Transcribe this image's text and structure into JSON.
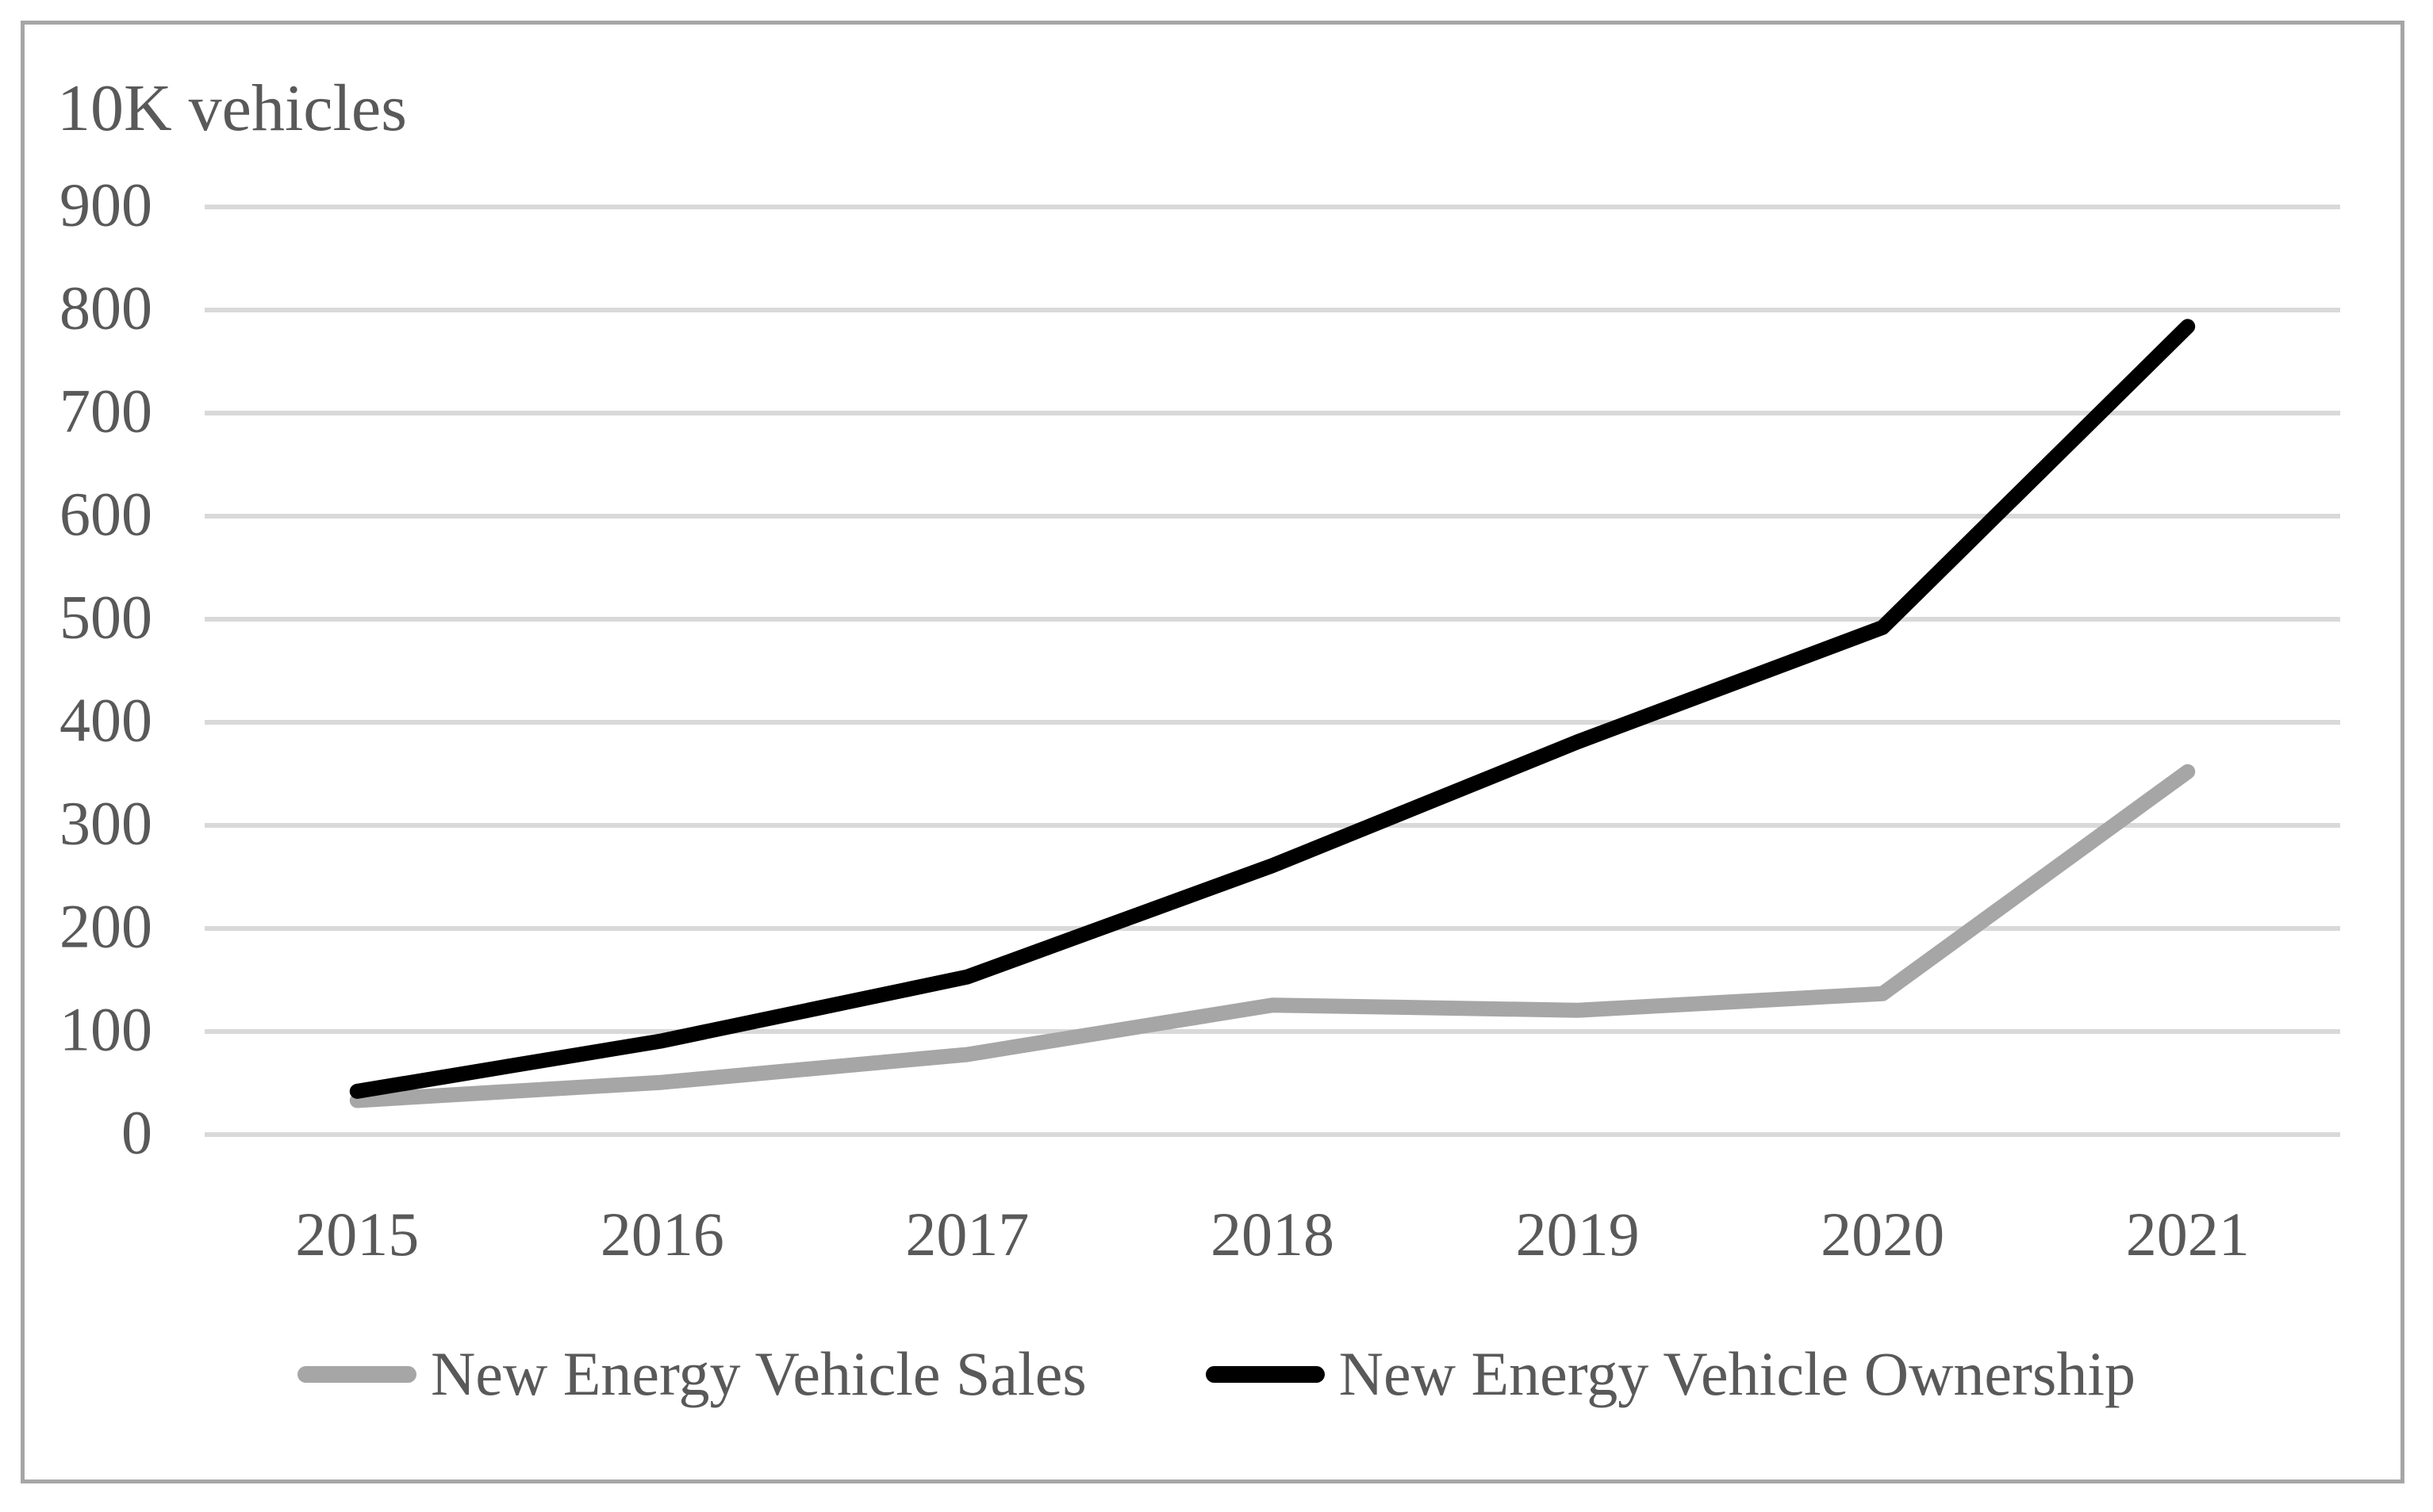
{
  "title": "10K vehicles",
  "chart_data": {
    "type": "line",
    "categories": [
      "2015",
      "2016",
      "2017",
      "2018",
      "2019",
      "2020",
      "2021"
    ],
    "series": [
      {
        "name": "New Energy Vehicle Sales",
        "color": "#a6a6a6",
        "values": [
          33.1,
          50.7,
          77.7,
          125.6,
          120.6,
          136.7,
          352.1
        ]
      },
      {
        "name": "New Energy Vehicle Ownership",
        "color": "#000000",
        "values": [
          42,
          91,
          153,
          261,
          381,
          492,
          784
        ]
      }
    ],
    "ylabel": "10K vehicles",
    "xlabel": "",
    "ylim": [
      0,
      900
    ],
    "yticks": [
      0,
      100,
      200,
      300,
      400,
      500,
      600,
      700,
      800,
      900
    ],
    "grid": true,
    "legend_position": "bottom"
  },
  "colors": {
    "text": "#595959",
    "gridline": "#d9d9d9",
    "figure_border": "#a6a6a6",
    "background": "#ffffff"
  }
}
